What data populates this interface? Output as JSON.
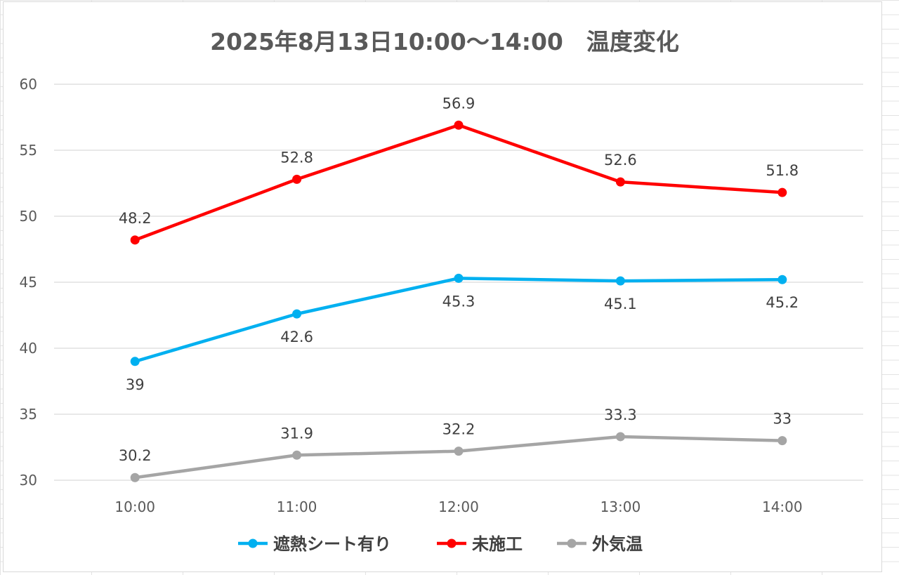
{
  "chart_data": {
    "type": "line",
    "title": "2025年8月13日10:00～14:00　温度変化",
    "categories": [
      "10:00",
      "11:00",
      "12:00",
      "13:00",
      "14:00"
    ],
    "ylim": [
      30,
      60
    ],
    "yticks": [
      30,
      35,
      40,
      45,
      50,
      55,
      60
    ],
    "grid": true,
    "legend_position": "bottom",
    "series": [
      {
        "name": "遮熱シート有り",
        "color": "#00b0f0",
        "values": [
          39,
          42.6,
          45.3,
          45.1,
          45.2
        ],
        "labels": [
          "39",
          "42.6",
          "45.3",
          "45.1",
          "45.2"
        ],
        "label_position": "below"
      },
      {
        "name": "未施工",
        "color": "#ff0000",
        "values": [
          48.2,
          52.8,
          56.9,
          52.6,
          51.8
        ],
        "labels": [
          "48.2",
          "52.8",
          "56.9",
          "52.6",
          "51.8"
        ],
        "label_position": "above"
      },
      {
        "name": "外気温",
        "color": "#a5a5a5",
        "values": [
          30.2,
          31.9,
          32.2,
          33.3,
          33
        ],
        "labels": [
          "30.2",
          "31.9",
          "32.2",
          "33.3",
          "33"
        ],
        "label_position": "above"
      }
    ]
  }
}
